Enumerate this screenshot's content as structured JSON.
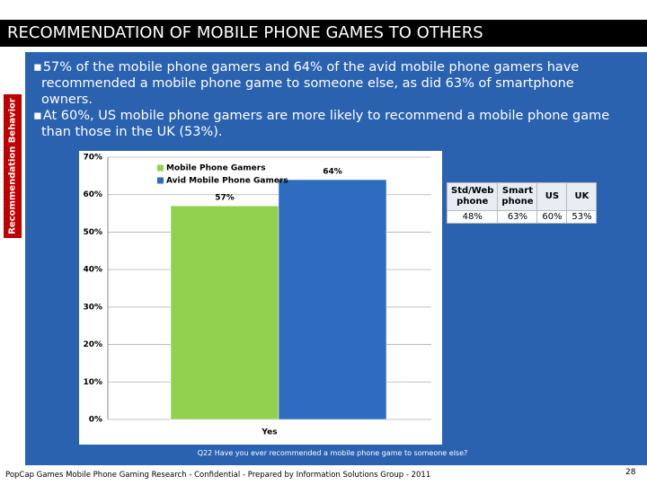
{
  "title": "RECOMMENDATION OF MOBILE PHONE GAMES TO OTHERS",
  "side_label": "Recommendation Behavior",
  "bullets": [
    "57% of the mobile phone gamers and 64% of the avid mobile phone gamers have recommended a mobile phone game to someone else, as did 63% of smartphone owners.",
    "At 60%, US mobile phone gamers are more likely to recommend a mobile phone game than those in the UK (53%)."
  ],
  "chart_data": {
    "type": "bar",
    "categories": [
      "Yes"
    ],
    "series": [
      {
        "name": "Mobile Phone Gamers",
        "color": "#92d050",
        "values": [
          57
        ],
        "value_labels": [
          "57%"
        ]
      },
      {
        "name": "Avid Mobile Phone Gamers",
        "color": "#2e6cbf",
        "values": [
          64
        ],
        "value_labels": [
          "64%"
        ]
      }
    ],
    "ylim": [
      0,
      70
    ],
    "yticks": [
      {
        "value": 0,
        "label": "0%"
      },
      {
        "value": 10,
        "label": "10%"
      },
      {
        "value": 20,
        "label": "20%"
      },
      {
        "value": 30,
        "label": "30%"
      },
      {
        "value": 40,
        "label": "40%"
      },
      {
        "value": 50,
        "label": "50%"
      },
      {
        "value": 60,
        "label": "60%"
      },
      {
        "value": 70,
        "label": "70%"
      }
    ],
    "grid": true,
    "legend": "top-left"
  },
  "table": {
    "header": [
      "Std/Web phone",
      "Smart phone",
      "US",
      "UK"
    ],
    "rows": [
      [
        "48%",
        "63%",
        "60%",
        "53%"
      ]
    ]
  },
  "question": "Q22  Have you ever recommended a mobile phone game to someone else?",
  "footer": "PopCap Games Mobile Phone Gaming Research - Confidential - Prepared by Information Solutions Group - 2011",
  "page_number": "28"
}
